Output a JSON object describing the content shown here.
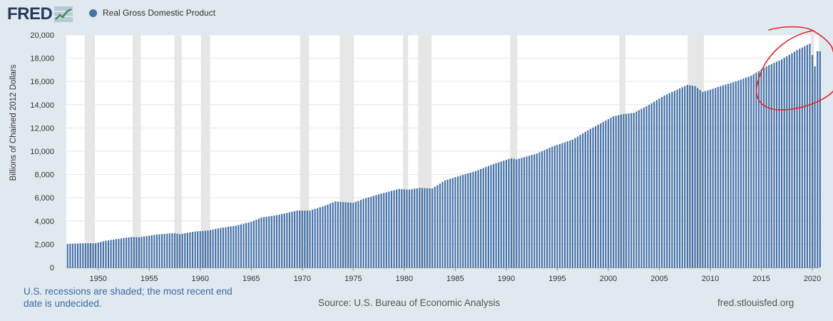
{
  "header": {
    "logo_text": "FRED",
    "logo_icon": "line-chart-icon",
    "legend_label": "Real Gross Domestic Product",
    "legend_color": "#4572a7"
  },
  "footer": {
    "note": "U.S. recessions are shaded; the most recent end date is undecided.",
    "source": "Source: U.S. Bureau of Economic Analysis",
    "credit": "fred.stlouisfed.org"
  },
  "annotation": {
    "type": "hand-drawn circle",
    "color": "#e0252a"
  },
  "chart_data": {
    "type": "bar",
    "frequency": "quarterly",
    "ylabel": "Billions of Chained 2012 Dollars",
    "ylim": [
      0,
      20000
    ],
    "yticks": [
      0,
      2000,
      4000,
      6000,
      8000,
      10000,
      12000,
      14000,
      16000,
      18000,
      20000
    ],
    "ytick_labels": [
      "0",
      "2,000",
      "4,000",
      "6,000",
      "8,000",
      "10,000",
      "12,000",
      "14,000",
      "16,000",
      "18,000",
      "20,000"
    ],
    "xlim": [
      1947.0,
      2020.75
    ],
    "xticks": [
      1950,
      1955,
      1960,
      1965,
      1970,
      1975,
      1980,
      1985,
      1990,
      1995,
      2000,
      2005,
      2010,
      2015,
      2020
    ],
    "xtick_labels": [
      "1950",
      "1955",
      "1960",
      "1965",
      "1970",
      "1975",
      "1980",
      "1985",
      "1990",
      "1995",
      "2000",
      "2005",
      "2010",
      "2015",
      "2020"
    ],
    "grid": "horizontal",
    "bar_color": "#4572a7",
    "recession_color": "#e6e6e6",
    "recessions": [
      [
        1948.8,
        1949.8
      ],
      [
        1953.5,
        1954.3
      ],
      [
        1957.6,
        1958.3
      ],
      [
        1960.2,
        1961.1
      ],
      [
        1969.9,
        1970.8
      ],
      [
        1973.8,
        1975.2
      ],
      [
        1980.0,
        1980.5
      ],
      [
        1981.5,
        1982.8
      ],
      [
        1990.5,
        1991.2
      ],
      [
        2001.2,
        2001.8
      ],
      [
        2007.9,
        2009.5
      ],
      [
        2020.0,
        2020.3
      ]
    ],
    "anchors": [
      [
        1947.0,
        2030
      ],
      [
        1948.5,
        2080
      ],
      [
        1949.75,
        2090
      ],
      [
        1950.75,
        2300
      ],
      [
        1951.75,
        2440
      ],
      [
        1953.25,
        2620
      ],
      [
        1954.0,
        2600
      ],
      [
        1955.75,
        2840
      ],
      [
        1957.5,
        2960
      ],
      [
        1958.0,
        2870
      ],
      [
        1959.5,
        3100
      ],
      [
        1960.75,
        3180
      ],
      [
        1962.0,
        3400
      ],
      [
        1963.5,
        3600
      ],
      [
        1965.0,
        3930
      ],
      [
        1966.0,
        4300
      ],
      [
        1967.5,
        4500
      ],
      [
        1969.5,
        4900
      ],
      [
        1970.75,
        4900
      ],
      [
        1972.0,
        5250
      ],
      [
        1973.25,
        5680
      ],
      [
        1975.0,
        5560
      ],
      [
        1976.0,
        5900
      ],
      [
        1977.5,
        6300
      ],
      [
        1979.5,
        6760
      ],
      [
        1980.5,
        6700
      ],
      [
        1981.5,
        6850
      ],
      [
        1982.75,
        6800
      ],
      [
        1984.0,
        7500
      ],
      [
        1985.5,
        7900
      ],
      [
        1987.0,
        8300
      ],
      [
        1988.75,
        8900
      ],
      [
        1990.5,
        9400
      ],
      [
        1991.0,
        9300
      ],
      [
        1993.0,
        9800
      ],
      [
        1994.5,
        10400
      ],
      [
        1996.5,
        11000
      ],
      [
        1998.0,
        11800
      ],
      [
        2000.5,
        13000
      ],
      [
        2001.5,
        13200
      ],
      [
        2002.5,
        13300
      ],
      [
        2004.0,
        14000
      ],
      [
        2005.5,
        14800
      ],
      [
        2007.75,
        15700
      ],
      [
        2008.5,
        15600
      ],
      [
        2009.25,
        15100
      ],
      [
        2010.0,
        15300
      ],
      [
        2011.0,
        15600
      ],
      [
        2012.5,
        16000
      ],
      [
        2014.0,
        16500
      ],
      [
        2015.5,
        17300
      ],
      [
        2017.0,
        17900
      ],
      [
        2018.5,
        18700
      ],
      [
        2019.75,
        19250
      ],
      [
        2020.25,
        17300
      ],
      [
        2020.5,
        18600
      ]
    ]
  }
}
